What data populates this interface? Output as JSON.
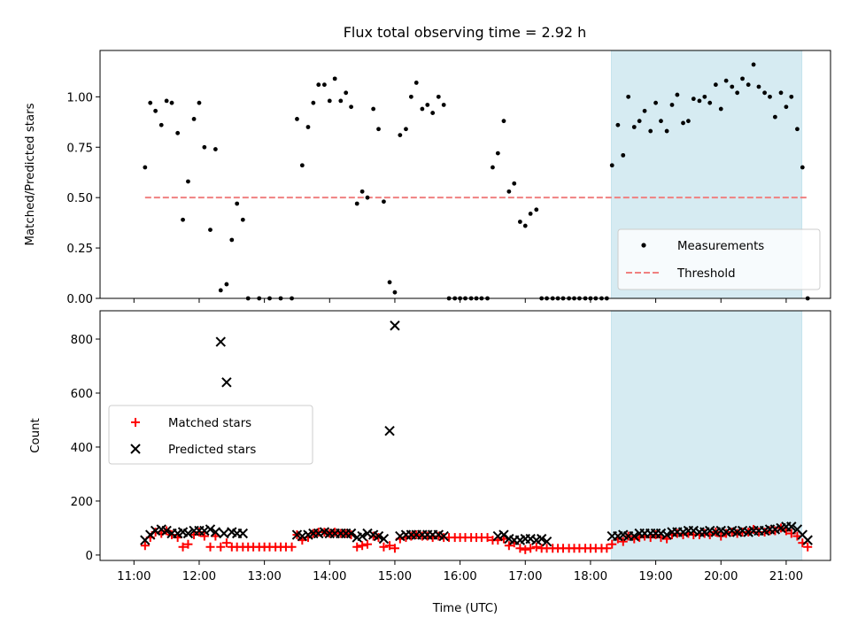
{
  "chart_data": {
    "title": "Flux total observing time = 2.92 h",
    "x_axis": {
      "label": "Time (UTC)",
      "range_hours": [
        10.48,
        21.68
      ],
      "ticks": [
        {
          "value": 11,
          "label": "11:00"
        },
        {
          "value": 12,
          "label": "12:00"
        },
        {
          "value": 13,
          "label": "13:00"
        },
        {
          "value": 14,
          "label": "14:00"
        },
        {
          "value": 15,
          "label": "15:00"
        },
        {
          "value": 16,
          "label": "16:00"
        },
        {
          "value": 17,
          "label": "17:00"
        },
        {
          "value": 18,
          "label": "18:00"
        },
        {
          "value": 19,
          "label": "19:00"
        },
        {
          "value": 20,
          "label": "20:00"
        },
        {
          "value": 21,
          "label": "21:00"
        }
      ]
    },
    "highlight_span_hours": [
      18.32,
      21.24
    ],
    "colors": {
      "highlight": "#add8e6",
      "threshold": "#f08080",
      "matched": "#ff0000",
      "predicted": "#000000",
      "measurement": "#000000"
    },
    "top_panel": {
      "type": "scatter",
      "ylabel": "Matched/Predicted stars",
      "ylim": [
        0,
        1.23
      ],
      "yticks": [
        "0.00",
        "0.25",
        "0.50",
        "0.75",
        "1.00"
      ],
      "ytick_values": [
        0,
        0.25,
        0.5,
        0.75,
        1.0
      ],
      "threshold": {
        "value": 0.5,
        "x_range": [
          11.17,
          21.33
        ]
      },
      "legend": {
        "position": "lower right",
        "entries": [
          "Measurements",
          "Threshold"
        ]
      },
      "measurements": {
        "x": [
          11.17,
          11.25,
          11.33,
          11.42,
          11.5,
          11.58,
          11.67,
          11.75,
          11.83,
          11.92,
          12.0,
          12.08,
          12.17,
          12.25,
          12.33,
          12.42,
          12.5,
          12.58,
          12.67,
          12.75,
          12.92,
          13.08,
          13.25,
          13.42,
          13.5,
          13.58,
          13.67,
          13.75,
          13.83,
          13.92,
          14.0,
          14.08,
          14.17,
          14.25,
          14.33,
          14.42,
          14.5,
          14.58,
          14.67,
          14.75,
          14.83,
          14.92,
          15.0,
          15.08,
          15.17,
          15.25,
          15.33,
          15.42,
          15.5,
          15.58,
          15.67,
          15.75,
          15.83,
          15.92,
          16.0,
          16.08,
          16.17,
          16.25,
          16.33,
          16.42,
          16.5,
          16.58,
          16.67,
          16.75,
          16.83,
          16.92,
          17.0,
          17.08,
          17.17,
          17.25,
          17.33,
          17.42,
          17.5,
          17.58,
          17.67,
          17.75,
          17.83,
          17.92,
          18.0,
          18.08,
          18.17,
          18.25,
          18.33,
          18.42,
          18.5,
          18.58,
          18.67,
          18.75,
          18.83,
          18.92,
          19.0,
          19.08,
          19.17,
          19.25,
          19.33,
          19.42,
          19.5,
          19.58,
          19.67,
          19.75,
          19.83,
          19.92,
          20.0,
          20.08,
          20.17,
          20.25,
          20.33,
          20.42,
          20.5,
          20.58,
          20.67,
          20.75,
          20.83,
          20.92,
          21.0,
          21.08,
          21.17,
          21.25,
          21.33
        ],
        "y": [
          0.65,
          0.97,
          0.93,
          0.86,
          0.98,
          0.97,
          0.82,
          0.39,
          0.58,
          0.89,
          0.97,
          0.75,
          0.34,
          0.74,
          0.04,
          0.07,
          0.29,
          0.47,
          0.39,
          0.0,
          0.0,
          0.0,
          0.0,
          0.0,
          0.89,
          0.66,
          0.85,
          0.97,
          1.06,
          1.06,
          0.98,
          1.09,
          0.98,
          1.02,
          0.95,
          0.47,
          0.53,
          0.5,
          0.94,
          0.84,
          0.48,
          0.08,
          0.03,
          0.81,
          0.84,
          1.0,
          1.07,
          0.94,
          0.96,
          0.92,
          1.0,
          0.96,
          0.0,
          0.0,
          0.0,
          0.0,
          0.0,
          0.0,
          0.0,
          0.0,
          0.65,
          0.72,
          0.88,
          0.53,
          0.57,
          0.38,
          0.36,
          0.42,
          0.44,
          0.0,
          0.0,
          0.0,
          0.0,
          0.0,
          0.0,
          0.0,
          0.0,
          0.0,
          0.0,
          0.0,
          0.0,
          0.0,
          0.66,
          0.86,
          0.71,
          1.0,
          0.85,
          0.88,
          0.93,
          0.83,
          0.97,
          0.88,
          0.83,
          0.96,
          1.01,
          0.87,
          0.88,
          0.99,
          0.98,
          1.0,
          0.97,
          1.06,
          0.94,
          1.08,
          1.05,
          1.02,
          1.09,
          1.06,
          1.16,
          1.05,
          1.02,
          1.0,
          0.9,
          1.02,
          0.95,
          1.0,
          0.84,
          0.65,
          0.0
        ]
      }
    },
    "bottom_panel": {
      "type": "scatter",
      "ylabel": "Count",
      "ylim": [
        -20,
        905
      ],
      "yticks": [
        "0",
        "200",
        "400",
        "600",
        "800"
      ],
      "ytick_values": [
        0,
        200,
        400,
        600,
        800
      ],
      "legend": {
        "position": "center left",
        "entries": [
          "Matched stars",
          "Predicted stars"
        ]
      },
      "matched": {
        "x": [
          11.17,
          11.25,
          11.33,
          11.42,
          11.5,
          11.58,
          11.67,
          11.75,
          11.83,
          11.92,
          12.0,
          12.08,
          12.17,
          12.25,
          12.33,
          12.42,
          12.5,
          12.58,
          12.67,
          12.75,
          12.83,
          12.92,
          13.0,
          13.08,
          13.17,
          13.25,
          13.33,
          13.42,
          13.5,
          13.58,
          13.67,
          13.75,
          13.83,
          13.92,
          14.0,
          14.08,
          14.17,
          14.25,
          14.33,
          14.42,
          14.5,
          14.58,
          14.67,
          14.75,
          14.83,
          14.92,
          15.0,
          15.08,
          15.17,
          15.25,
          15.33,
          15.42,
          15.5,
          15.58,
          15.67,
          15.75,
          15.83,
          15.92,
          16.0,
          16.08,
          16.17,
          16.25,
          16.33,
          16.42,
          16.5,
          16.58,
          16.67,
          16.75,
          16.83,
          16.92,
          17.0,
          17.08,
          17.17,
          17.25,
          17.33,
          17.42,
          17.5,
          17.58,
          17.67,
          17.75,
          17.83,
          17.92,
          18.0,
          18.08,
          18.17,
          18.25,
          18.33,
          18.42,
          18.5,
          18.58,
          18.67,
          18.75,
          18.83,
          18.92,
          19.0,
          19.08,
          19.17,
          19.25,
          19.33,
          19.42,
          19.5,
          19.58,
          19.67,
          19.75,
          19.83,
          19.92,
          20.0,
          20.08,
          20.17,
          20.25,
          20.33,
          20.42,
          20.5,
          20.58,
          20.67,
          20.75,
          20.83,
          20.92,
          21.0,
          21.08,
          21.17,
          21.25,
          21.33
        ],
        "y": [
          35,
          65,
          85,
          80,
          90,
          75,
          65,
          30,
          40,
          75,
          85,
          70,
          30,
          70,
          30,
          45,
          30,
          30,
          30,
          30,
          30,
          30,
          30,
          30,
          30,
          30,
          30,
          30,
          75,
          55,
          65,
          80,
          85,
          85,
          80,
          85,
          80,
          80,
          75,
          30,
          35,
          40,
          70,
          65,
          30,
          35,
          25,
          60,
          65,
          70,
          75,
          70,
          70,
          65,
          70,
          65,
          65,
          65,
          65,
          65,
          65,
          65,
          65,
          65,
          55,
          55,
          60,
          35,
          45,
          25,
          20,
          25,
          30,
          25,
          25,
          25,
          25,
          25,
          25,
          25,
          25,
          25,
          25,
          25,
          25,
          25,
          40,
          60,
          50,
          70,
          60,
          65,
          70,
          65,
          75,
          65,
          60,
          75,
          80,
          75,
          80,
          75,
          75,
          80,
          75,
          85,
          70,
          80,
          85,
          80,
          85,
          85,
          95,
          85,
          85,
          90,
          90,
          100,
          90,
          80,
          70,
          45,
          30
        ]
      },
      "predicted": {
        "x": [
          11.17,
          11.25,
          11.33,
          11.42,
          11.5,
          11.58,
          11.67,
          11.75,
          11.83,
          11.92,
          12.0,
          12.08,
          12.17,
          12.25,
          12.33,
          12.38,
          12.42,
          12.5,
          12.58,
          12.67,
          13.5,
          13.58,
          13.67,
          13.75,
          13.83,
          13.92,
          14.0,
          14.08,
          14.17,
          14.25,
          14.33,
          14.42,
          14.5,
          14.58,
          14.67,
          14.75,
          14.83,
          14.92,
          15.0,
          15.08,
          15.17,
          15.25,
          15.33,
          15.42,
          15.5,
          15.58,
          15.67,
          15.75,
          16.58,
          16.67,
          16.75,
          16.83,
          16.92,
          17.0,
          17.08,
          17.17,
          17.25,
          17.33,
          18.33,
          18.42,
          18.5,
          18.58,
          18.67,
          18.75,
          18.83,
          18.92,
          19.0,
          19.08,
          19.17,
          19.25,
          19.33,
          19.42,
          19.5,
          19.58,
          19.67,
          19.75,
          19.83,
          19.92,
          20.0,
          20.08,
          20.17,
          20.25,
          20.33,
          20.42,
          20.5,
          20.58,
          20.67,
          20.75,
          20.83,
          20.92,
          21.0,
          21.08,
          21.17,
          21.25,
          21.33
        ],
        "y": [
          55,
          75,
          90,
          95,
          90,
          80,
          80,
          85,
          80,
          90,
          90,
          90,
          95,
          85,
          790,
          80,
          640,
          85,
          80,
          80,
          75,
          70,
          75,
          80,
          80,
          85,
          80,
          80,
          80,
          80,
          80,
          65,
          70,
          80,
          75,
          70,
          60,
          460,
          850,
          70,
          75,
          75,
          75,
          75,
          75,
          75,
          75,
          70,
          70,
          75,
          60,
          55,
          55,
          60,
          60,
          55,
          60,
          50,
          70,
          70,
          75,
          70,
          70,
          80,
          80,
          80,
          80,
          80,
          75,
          85,
          85,
          85,
          90,
          90,
          85,
          85,
          90,
          85,
          90,
          85,
          90,
          85,
          90,
          85,
          90,
          90,
          90,
          95,
          95,
          100,
          105,
          105,
          95,
          75,
          55
        ]
      }
    }
  }
}
